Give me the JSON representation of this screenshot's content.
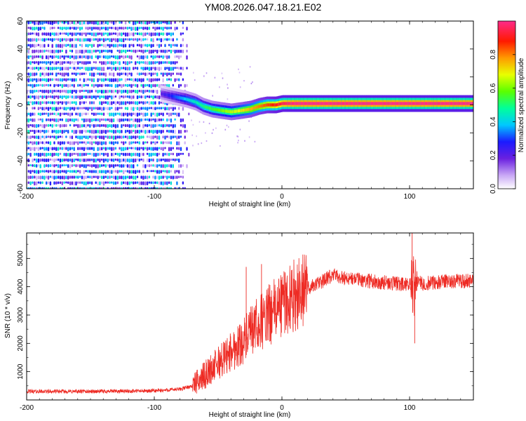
{
  "title": "YM08.2026.047.18.21.E02",
  "chart_data": [
    {
      "type": "heatmap",
      "xlabel": "Height of straight line (km)",
      "ylabel": "Frequency (Hz)",
      "xlim": [
        -200,
        150
      ],
      "ylim": [
        -60,
        60
      ],
      "xticks": [
        -200,
        -100,
        0,
        100
      ],
      "xtick_labels": [
        "-200",
        "-100",
        "0",
        "100"
      ],
      "yticks": [
        -60,
        -40,
        -20,
        0,
        20,
        40,
        60
      ],
      "ytick_labels": [
        "-60",
        "-40",
        "-20",
        "0",
        "20",
        "40",
        "60"
      ],
      "colorbar": {
        "label": "Normalized spectral amplitude",
        "range": [
          0,
          1
        ],
        "ticks": [
          0.0,
          0.2,
          0.4,
          0.6,
          0.8
        ],
        "tick_labels": [
          "0.0",
          "0.2",
          "0.4",
          "0.6",
          "0.8"
        ]
      },
      "noise_region_x": [
        -200,
        -72
      ],
      "ridge": {
        "x": [
          -95,
          -85,
          -75,
          -68,
          -62,
          -55,
          -48,
          -40,
          -32,
          -25,
          -18,
          -12,
          -5,
          0,
          5,
          10,
          20,
          40,
          80,
          100,
          150
        ],
        "y": [
          8,
          6,
          4,
          2,
          -1,
          -3,
          -4,
          -5,
          -4,
          -3,
          -1,
          0,
          0,
          1,
          1,
          1,
          1,
          1,
          1,
          1,
          1
        ],
        "amplitude": [
          0.2,
          0.3,
          0.4,
          0.45,
          0.5,
          0.55,
          0.6,
          0.65,
          0.7,
          0.75,
          0.8,
          0.85,
          0.9,
          0.95,
          0.98,
          1.0,
          1.0,
          1.0,
          1.0,
          1.0,
          1.0
        ]
      }
    },
    {
      "type": "line",
      "xlabel": "Height of straight line (km)",
      "ylabel": "SNR (10 * v/v)",
      "xlim": [
        -200,
        150
      ],
      "ylim": [
        0,
        5900
      ],
      "xticks": [
        -200,
        -100,
        0,
        100
      ],
      "xtick_labels": [
        "-200",
        "-100",
        "0",
        "100"
      ],
      "yticks": [
        1000,
        2000,
        3000,
        4000,
        5000
      ],
      "ytick_labels": [
        "1000",
        "2000",
        "3000",
        "4000",
        "5000"
      ],
      "color": "#ee2b24",
      "series": [
        {
          "name": "SNR",
          "x": [
            -200,
            -150,
            -100,
            -80,
            -70,
            -60,
            -50,
            -40,
            -30,
            -20,
            -10,
            0,
            10,
            20,
            30,
            40,
            50,
            60,
            70,
            80,
            90,
            100,
            105,
            110,
            120,
            130,
            140,
            150
          ],
          "y": [
            300,
            300,
            320,
            380,
            500,
            900,
            1300,
            1700,
            2100,
            2600,
            3000,
            3400,
            3700,
            3950,
            4150,
            4400,
            4300,
            4250,
            4200,
            4150,
            4100,
            4050,
            4200,
            4100,
            4150,
            4200,
            4200,
            4200
          ]
        }
      ],
      "spikes": [
        {
          "x": -28,
          "y": 4700
        },
        {
          "x": -16,
          "y": 4800
        },
        {
          "x": 102,
          "y": 5900
        },
        {
          "x": 104,
          "y": 2000
        }
      ]
    }
  ]
}
